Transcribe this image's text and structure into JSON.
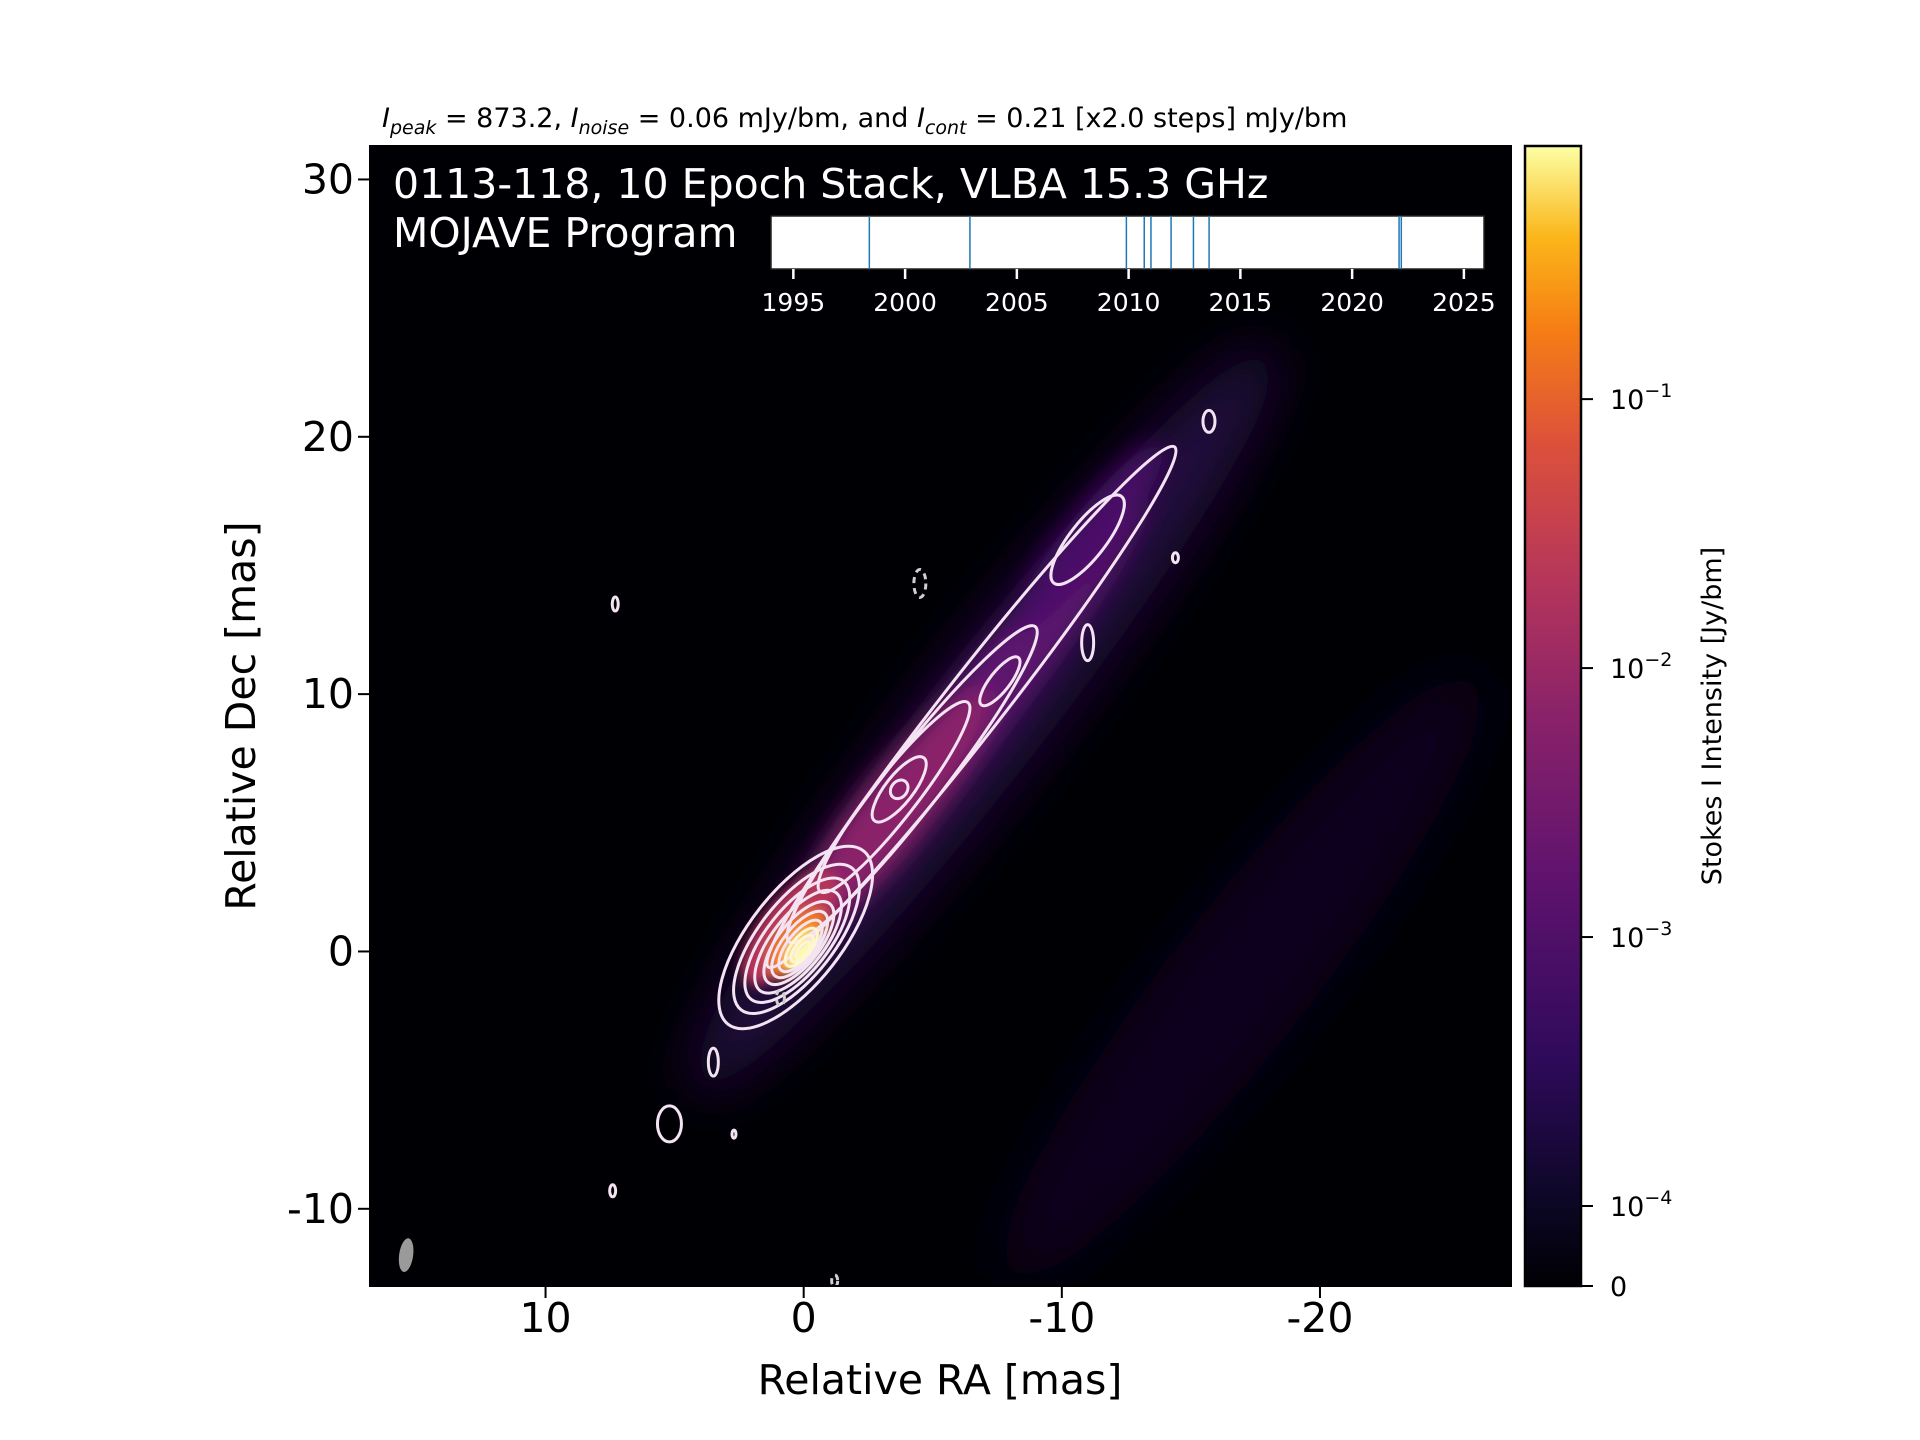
{
  "chart_data": {
    "type": "heatmap",
    "subtitle_parts": {
      "peak_symbol": "I",
      "peak_sub": "peak",
      "peak_text": " = 873.2, ",
      "noise_symbol": "I",
      "noise_sub": "noise",
      "noise_text": " = 0.06 mJy/bm, and ",
      "cont_symbol": "I",
      "cont_sub": "cont",
      "cont_text": " = 0.21 [x2.0 steps] mJy/bm"
    },
    "title_line1": "0113-118, 10 Epoch Stack, VLBA 15.3 GHz",
    "title_line2": "MOJAVE Program",
    "xlabel": "Relative RA [mas]",
    "ylabel": "Relative Dec [mas]",
    "xlim": [
      16.8,
      -27.4
    ],
    "ylim": [
      -13,
      31.3
    ],
    "x_ticks": [
      {
        "v": 10,
        "label": "10"
      },
      {
        "v": 0,
        "label": "0"
      },
      {
        "v": -10,
        "label": "-10"
      },
      {
        "v": -20,
        "label": "-20"
      }
    ],
    "y_ticks": [
      {
        "v": 30,
        "label": "30"
      },
      {
        "v": 20,
        "label": "20"
      },
      {
        "v": 10,
        "label": "10"
      },
      {
        "v": 0,
        "label": "0"
      },
      {
        "v": -10,
        "label": "-10"
      }
    ],
    "colormap": "inferno",
    "colorbar": {
      "label": "Stokes I Intensity [Jy/bm]",
      "scale": "log",
      "ticks": [
        {
          "v": 0.1,
          "base": "10",
          "exp": "−1"
        },
        {
          "v": 0.01,
          "base": "10",
          "exp": "−2"
        },
        {
          "v": 0.001,
          "base": "10",
          "exp": "−3"
        },
        {
          "v": 0.0001,
          "base": "10",
          "exp": "−4"
        },
        {
          "v": 0,
          "base": "0",
          "exp": ""
        }
      ],
      "max": 0.8732
    },
    "jet": {
      "core": [
        0,
        0
      ],
      "position_angle_deg": -32,
      "extent_mas": 27,
      "knots": [
        {
          "x": 0,
          "y": 0,
          "level": 1.0
        },
        {
          "x": -1.5,
          "y": 2.5,
          "level": 0.55
        },
        {
          "x": -3.7,
          "y": 6.3,
          "level": 0.45
        },
        {
          "x": -5.5,
          "y": 8.5,
          "level": 0.3
        },
        {
          "x": -7.6,
          "y": 10.5,
          "level": 0.25
        },
        {
          "x": -11.0,
          "y": 16.0,
          "level": 0.2
        },
        {
          "x": -14.0,
          "y": 19.5,
          "level": 0.15
        }
      ]
    },
    "epoch_timeline": {
      "x_ticks": [
        "1995",
        "2000",
        "2005",
        "2010",
        "2015",
        "2020",
        "2025"
      ],
      "x_range": [
        1994,
        2025.9
      ],
      "epochs": [
        1998.4,
        2002.9,
        2009.9,
        2010.7,
        2011.0,
        2011.9,
        2012.9,
        2013.6,
        2022.1,
        2022.2
      ]
    },
    "beam": {
      "x": 15.4,
      "y": -11.8
    }
  }
}
